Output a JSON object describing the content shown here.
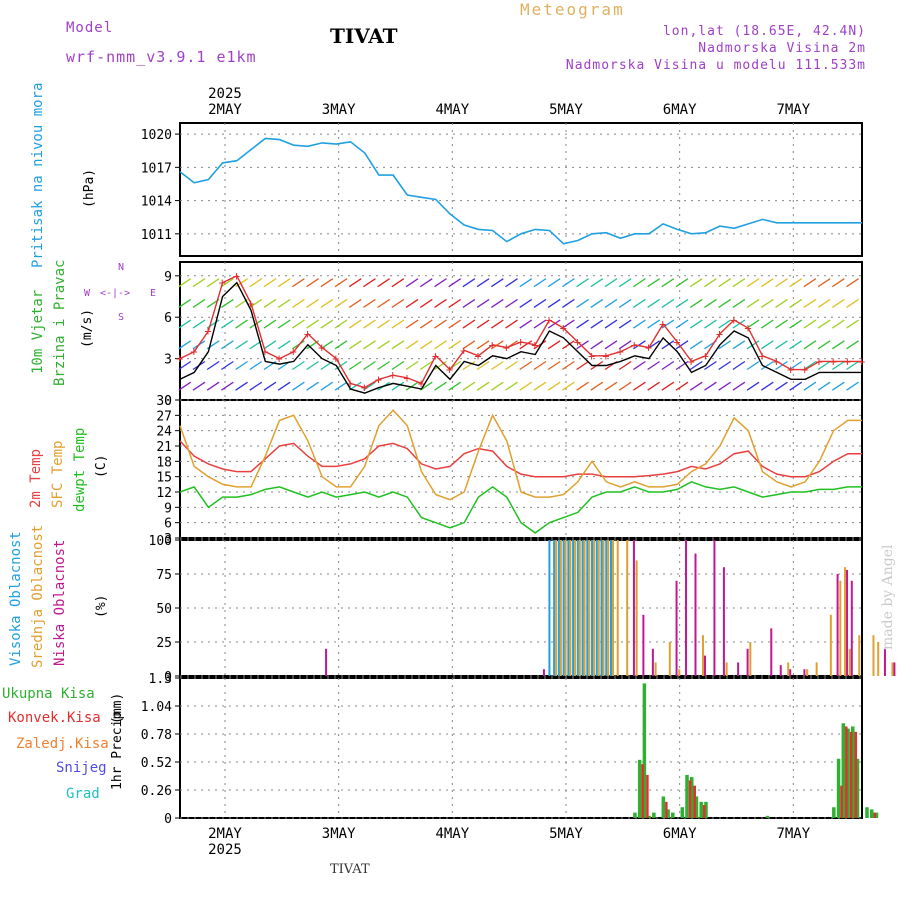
{
  "header": {
    "meteogram_label": "Meteogram",
    "title": "TIVAT",
    "model_label": "Model",
    "model_name": "wrf-nmm_v3.9.1 e1km",
    "coords": "lon,lat (18.65E, 42.4N)",
    "altitude": "Nadmorska Visina 2m",
    "model_altitude": "Nadmorska Visina u modelu 111.533m",
    "footer": "TIVAT",
    "credit": "made by Angel"
  },
  "colors": {
    "pressure": "#20a0e0",
    "wind_speed": "#000000",
    "wind_gust": "#e03030",
    "temp2m": "#e84040",
    "sfc_temp": "#e0a030",
    "dewpoint": "#20c020",
    "high_cloud": "#20a0e0",
    "mid_cloud": "#e0a030",
    "low_cloud": "#c01890",
    "total_precip": "#30b030",
    "conv_precip": "#e03030",
    "frz_precip": "#f08030",
    "snow": "#5050e0",
    "hail": "#20c0c0"
  },
  "time_axis": {
    "top_labels": [
      "2MAY",
      "3MAY",
      "4MAY",
      "5MAY",
      "6MAY",
      "7MAY"
    ],
    "top_year": "2025",
    "bottom_labels": [
      "2MAY",
      "3MAY",
      "4MAY",
      "5MAY",
      "6MAY",
      "7MAY"
    ],
    "bottom_year": "2025"
  },
  "panels": {
    "pressure": {
      "ylabel_main": "Pritisak na nivou mora",
      "unit": "(hPa)"
    },
    "wind": {
      "ylabel_1": "10m Vjetar",
      "ylabel_2": "Brzina i Pravac",
      "unit": "(m/s)",
      "compass_w": "W",
      "compass_e": "E",
      "compass_arrow": "<-|->",
      "compass_n": "N",
      "compass_s": "S"
    },
    "temp": {
      "ylabel_1": "2m Temp",
      "ylabel_2": "SFC Temp",
      "ylabel_3": "dewpt Temp",
      "unit": "(C)"
    },
    "cloud": {
      "ylabel_1": "Visoka Oblacnost",
      "ylabel_2": "Srednja Oblacnost",
      "ylabel_3": "Niska Oblacnost",
      "unit": "(%)"
    },
    "precip": {
      "ylabel_main": "1hr Precip",
      "unit": "(mm)"
    }
  },
  "legend_precip": [
    {
      "label": "Ukupna Kisa"
    },
    {
      "label": "Konvek.Kisa"
    },
    {
      "label": "Zaledj.Kisa"
    },
    {
      "label": "Snijeg"
    },
    {
      "label": "Grad"
    }
  ],
  "chart_data": [
    {
      "type": "line",
      "name": "pressure",
      "ylim": [
        1009,
        1021
      ],
      "yticks": [
        "1011",
        "1014",
        "1017",
        "1020"
      ],
      "ytick_values": [
        1011,
        1014,
        1017,
        1020
      ],
      "x": [
        0,
        3,
        6,
        9,
        12,
        15,
        18,
        21,
        24,
        27,
        30,
        33,
        36,
        39,
        42,
        45,
        48,
        51,
        54,
        57,
        60,
        63,
        66,
        69,
        72,
        75,
        78,
        81,
        84,
        87,
        90,
        93,
        96,
        99,
        102,
        105,
        108,
        111,
        114,
        117,
        120,
        123,
        126,
        129,
        132,
        135,
        138,
        141,
        144
      ],
      "values": [
        1016.6,
        1015.6,
        1015.9,
        1017.4,
        1017.6,
        1018.6,
        1019.6,
        1019.5,
        1019.0,
        1018.9,
        1019.2,
        1019.1,
        1019.3,
        1018.3,
        1016.3,
        1016.3,
        1014.5,
        1014.3,
        1014.1,
        1012.8,
        1011.8,
        1011.4,
        1011.3,
        1010.3,
        1011.0,
        1011.4,
        1011.3,
        1010.1,
        1010.4,
        1011.0,
        1011.1,
        1010.6,
        1011.0,
        1011.0,
        1011.9,
        1011.4,
        1011.0,
        1011.1,
        1011.7,
        1011.5,
        1011.9,
        1012.3,
        1012.0,
        1012.0,
        1012.0,
        1012.0,
        1012.0,
        1012.0,
        1012.0
      ]
    },
    {
      "type": "line",
      "name": "wind",
      "ylim": [
        0,
        10
      ],
      "yticks": [
        "0",
        "3",
        "6",
        "9"
      ],
      "ytick_values": [
        0,
        3,
        6,
        9
      ],
      "x": [
        0,
        3,
        6,
        9,
        12,
        15,
        18,
        21,
        24,
        27,
        30,
        33,
        36,
        39,
        42,
        45,
        48,
        51,
        54,
        57,
        60,
        63,
        66,
        69,
        72,
        75,
        78,
        81,
        84,
        87,
        90,
        93,
        96,
        99,
        102,
        105,
        108,
        111,
        114,
        117,
        120,
        123,
        126,
        129,
        132,
        135,
        138,
        141,
        144
      ],
      "values": [
        1.5,
        2.0,
        3.5,
        7.5,
        8.5,
        6.5,
        2.8,
        2.6,
        2.8,
        4.0,
        3.0,
        2.5,
        0.8,
        0.5,
        0.9,
        1.2,
        1.0,
        0.8,
        2.5,
        1.5,
        2.8,
        2.5,
        3.2,
        3.0,
        3.5,
        3.3,
        5.0,
        4.5,
        3.5,
        2.5,
        2.5,
        2.8,
        3.2,
        3.0,
        4.5,
        3.5,
        2.0,
        2.5,
        4.0,
        5.0,
        4.5,
        2.5,
        2.0,
        1.5,
        1.5,
        2.0,
        2.0,
        2.0,
        2.0
      ],
      "gusts": [
        3.0,
        3.5,
        5.0,
        8.5,
        9.0,
        7.0,
        3.5,
        3.0,
        3.5,
        4.8,
        3.8,
        3.0,
        1.2,
        0.9,
        1.5,
        1.8,
        1.6,
        1.2,
        3.2,
        2.2,
        3.6,
        3.2,
        4.0,
        3.8,
        4.2,
        4.0,
        5.8,
        5.2,
        4.2,
        3.2,
        3.2,
        3.5,
        4.0,
        3.8,
        5.5,
        4.2,
        2.8,
        3.2,
        4.8,
        5.8,
        5.2,
        3.2,
        2.8,
        2.2,
        2.2,
        2.8,
        2.8,
        2.8,
        2.8
      ]
    },
    {
      "type": "line",
      "name": "temperature",
      "ylim": [
        3,
        30
      ],
      "yticks": [
        "3",
        "6",
        "9",
        "12",
        "15",
        "18",
        "21",
        "24",
        "27",
        "30"
      ],
      "ytick_values": [
        3,
        6,
        9,
        12,
        15,
        18,
        21,
        24,
        27,
        30
      ],
      "x": [
        0,
        3,
        6,
        9,
        12,
        15,
        18,
        21,
        24,
        27,
        30,
        33,
        36,
        39,
        42,
        45,
        48,
        51,
        54,
        57,
        60,
        63,
        66,
        69,
        72,
        75,
        78,
        81,
        84,
        87,
        90,
        93,
        96,
        99,
        102,
        105,
        108,
        111,
        114,
        117,
        120,
        123,
        126,
        129,
        132,
        135,
        138,
        141,
        144
      ],
      "series": [
        {
          "key": "temp2m",
          "values": [
            22,
            19,
            17.5,
            16.5,
            16,
            16,
            18.5,
            21,
            21.5,
            19,
            17,
            17,
            17.5,
            18.5,
            21,
            21.5,
            20.5,
            17.5,
            16.5,
            17,
            19.5,
            20.5,
            20,
            17,
            15.5,
            15,
            15,
            15,
            15.5,
            15.5,
            15,
            15,
            15,
            15.2,
            15.5,
            16,
            17,
            16.5,
            17.5,
            19.5,
            20,
            17,
            15.5,
            15,
            15,
            16,
            18,
            19.5,
            19.5
          ]
        },
        {
          "key": "sfc_temp",
          "values": [
            25,
            17,
            15,
            13.5,
            13,
            13,
            19,
            26,
            27,
            22,
            15,
            13,
            13,
            17,
            25,
            28,
            25,
            16,
            11.5,
            10.5,
            12,
            20,
            27,
            22,
            12,
            11,
            11,
            11.5,
            14,
            18,
            14,
            13,
            14,
            13,
            13,
            13.5,
            16,
            17.5,
            21,
            26.5,
            24,
            16,
            14,
            13,
            14,
            18,
            24,
            26,
            26
          ]
        },
        {
          "key": "dewpoint",
          "values": [
            12,
            13,
            9,
            11,
            11,
            11.5,
            12.5,
            13,
            12,
            11,
            12,
            11,
            11.5,
            12,
            11,
            12,
            11,
            7,
            6,
            5,
            6,
            11,
            13,
            11,
            6,
            4,
            6,
            7,
            8,
            11,
            12,
            12,
            13,
            12,
            12,
            12.5,
            14,
            13,
            12.5,
            13,
            12,
            11,
            11.5,
            12,
            12,
            12.5,
            12.5,
            13,
            13
          ]
        }
      ]
    },
    {
      "type": "bar",
      "name": "cloud_cover",
      "ylim": [
        0,
        100
      ],
      "yticks": [
        "0",
        "25",
        "50",
        "75",
        "100"
      ],
      "ytick_values": [
        0,
        25,
        50,
        75,
        100
      ],
      "high": [
        [
          78,
          100
        ],
        [
          79,
          100
        ],
        [
          80,
          100
        ],
        [
          81,
          100
        ],
        [
          82,
          100
        ],
        [
          83,
          100
        ],
        [
          84,
          100
        ],
        [
          85,
          100
        ],
        [
          86,
          100
        ],
        [
          87,
          100
        ],
        [
          88,
          100
        ],
        [
          89,
          100
        ],
        [
          90,
          100
        ],
        [
          91,
          100
        ]
      ],
      "mid": [
        [
          79,
          100
        ],
        [
          80,
          100
        ],
        [
          81,
          100
        ],
        [
          82,
          100
        ],
        [
          83,
          100
        ],
        [
          84,
          100
        ],
        [
          85,
          100
        ],
        [
          86,
          100
        ],
        [
          87,
          100
        ],
        [
          88,
          100
        ],
        [
          89,
          100
        ],
        [
          90,
          100
        ],
        [
          91,
          100
        ],
        [
          92,
          100
        ],
        [
          94,
          100
        ],
        [
          96,
          85
        ],
        [
          100,
          10
        ],
        [
          103,
          25
        ],
        [
          105,
          5
        ],
        [
          110,
          30
        ],
        [
          115,
          10
        ],
        [
          120,
          25
        ],
        [
          128,
          10
        ],
        [
          132,
          5
        ],
        [
          134,
          10
        ],
        [
          137,
          45
        ],
        [
          139,
          70
        ],
        [
          140,
          80
        ],
        [
          141,
          20
        ],
        [
          143,
          30
        ],
        [
          146,
          30
        ],
        [
          147,
          25
        ],
        [
          150,
          10
        ],
        [
          152,
          5
        ],
        [
          154,
          10
        ]
      ],
      "low": [
        [
          30,
          20
        ],
        [
          76,
          5
        ],
        [
          95,
          100
        ],
        [
          97,
          45
        ],
        [
          99,
          20
        ],
        [
          104,
          70
        ],
        [
          106,
          100
        ],
        [
          108,
          90
        ],
        [
          110,
          15
        ],
        [
          112,
          100
        ],
        [
          114,
          80
        ],
        [
          117,
          10
        ],
        [
          119,
          20
        ],
        [
          124,
          35
        ],
        [
          126,
          8
        ],
        [
          128,
          5
        ],
        [
          131,
          5
        ],
        [
          138,
          75
        ],
        [
          140,
          78
        ],
        [
          141,
          70
        ],
        [
          148,
          20
        ],
        [
          150,
          10
        ],
        [
          153,
          15
        ]
      ]
    },
    {
      "type": "bar",
      "name": "precipitation",
      "ylim": [
        0,
        1.3
      ],
      "yticks": [
        "0",
        "0.26",
        "0.52",
        "0.78",
        "1.04",
        "1.3"
      ],
      "ytick_values": [
        0,
        0.26,
        0.52,
        0.78,
        1.04,
        1.3
      ],
      "total": [
        [
          96,
          0.05
        ],
        [
          97,
          0.54
        ],
        [
          98,
          1.25
        ],
        [
          99,
          0.02
        ],
        [
          100,
          0.05
        ],
        [
          102,
          0.2
        ],
        [
          103,
          0.08
        ],
        [
          104,
          0.05
        ],
        [
          106,
          0.1
        ],
        [
          107,
          0.4
        ],
        [
          108,
          0.38
        ],
        [
          109,
          0.2
        ],
        [
          110,
          0.15
        ],
        [
          111,
          0.15
        ],
        [
          124,
          0.02
        ],
        [
          138,
          0.1
        ],
        [
          139,
          0.55
        ],
        [
          140,
          0.88
        ],
        [
          141,
          0.83
        ],
        [
          142,
          0.85
        ],
        [
          143,
          0.55
        ],
        [
          145,
          0.1
        ],
        [
          146,
          0.08
        ],
        [
          147,
          0.05
        ]
      ],
      "convective": [
        [
          97,
          0.5
        ],
        [
          98,
          0.4
        ],
        [
          102,
          0.15
        ],
        [
          107,
          0.35
        ],
        [
          108,
          0.3
        ],
        [
          110,
          0.12
        ],
        [
          139,
          0.3
        ],
        [
          140,
          0.85
        ],
        [
          141,
          0.8
        ],
        [
          142,
          0.8
        ],
        [
          146,
          0.05
        ]
      ]
    }
  ]
}
